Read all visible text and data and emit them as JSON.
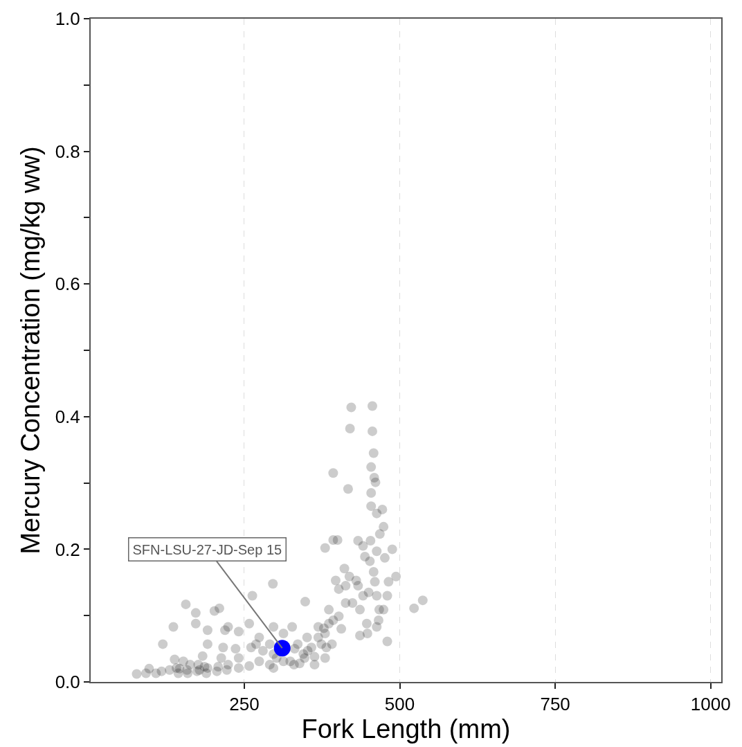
{
  "chart_data": {
    "type": "scatter",
    "xlabel": "Fork Length (mm)",
    "ylabel": "Mercury Concentration (mg/kg ww)",
    "xlim": [
      3,
      1017
    ],
    "ylim": [
      0,
      1.0
    ],
    "xticks": [
      250,
      500,
      750,
      1000
    ],
    "yticks": [
      {
        "value": 0,
        "label": "0.0"
      },
      {
        "value": 0.1,
        "label": null
      },
      {
        "value": 0.2,
        "label": "0.2"
      },
      {
        "value": 0.3,
        "label": null
      },
      {
        "value": 0.4,
        "label": "0.4"
      },
      {
        "value": 0.5,
        "label": null
      },
      {
        "value": 0.6,
        "label": "0.6"
      },
      {
        "value": 0.7,
        "label": null
      },
      {
        "value": 0.8,
        "label": "0.8"
      },
      {
        "value": 0.9,
        "label": null
      },
      {
        "value": 1.0,
        "label": "1.0"
      }
    ],
    "grid": "x",
    "marker": "circle",
    "series": [
      {
        "color": "#000000",
        "x": [
          77,
          119,
          117,
          146,
          159,
          144,
          186,
          183,
          202,
          210,
          216,
          219,
          241,
          263,
          296,
          327,
          348,
          393,
          417,
          420,
          422,
          456,
          456,
          458,
          454,
          459,
          454,
          461,
          454,
          463,
          472,
          474,
          468,
          453,
          393,
          400,
          380,
          433,
          444,
          452,
          476,
          488,
          397,
          411,
          430,
          450,
          480,
          494,
          482,
          523,
          537,
          480,
          463,
          474,
          466,
          448,
          436,
          406,
          378,
          351,
          331,
          297,
          280,
          261,
          241,
          224,
          208,
          191,
          178,
          163,
          152,
          138,
          136,
          156,
          172,
          172,
          191,
          224,
          258,
          274,
          297,
          313,
          324,
          339,
          347,
          358,
          369,
          380,
          386,
          393,
          402,
          413,
          424,
          436,
          441,
          447,
          391,
          382,
          380,
          363,
          345,
          330,
          313,
          302,
          291,
          274,
          258,
          241,
          222,
          206,
          189,
          174,
          158,
          141,
          130,
          108,
          97,
          92,
          191,
          236,
          291,
          336,
          352,
          369,
          386,
          402,
          413,
          419,
          433,
          458,
          463,
          441,
          460,
          467,
          463,
          363,
          374,
          297,
          269,
          213,
          176
        ],
        "values": [
          0.012,
          0.057,
          0.016,
          0.02,
          0.013,
          0.013,
          0.023,
          0.039,
          0.107,
          0.111,
          0.052,
          0.078,
          0.076,
          0.13,
          0.148,
          0.083,
          0.121,
          0.315,
          0.291,
          0.382,
          0.414,
          0.416,
          0.378,
          0.345,
          0.324,
          0.308,
          0.285,
          0.301,
          0.265,
          0.254,
          0.26,
          0.234,
          0.223,
          0.213,
          0.214,
          0.214,
          0.202,
          0.213,
          0.189,
          0.182,
          0.187,
          0.2,
          0.153,
          0.171,
          0.153,
          0.135,
          0.13,
          0.159,
          0.151,
          0.111,
          0.123,
          0.061,
          0.083,
          0.109,
          0.093,
          0.073,
          0.07,
          0.08,
          0.081,
          0.067,
          0.05,
          0.042,
          0.047,
          0.052,
          0.036,
          0.026,
          0.023,
          0.021,
          0.018,
          0.026,
          0.031,
          0.034,
          0.083,
          0.117,
          0.104,
          0.088,
          0.057,
          0.083,
          0.088,
          0.067,
          0.083,
          0.073,
          0.031,
          0.028,
          0.036,
          0.052,
          0.067,
          0.073,
          0.088,
          0.093,
          0.099,
          0.119,
          0.119,
          0.109,
          0.13,
          0.088,
          0.057,
          0.052,
          0.036,
          0.038,
          0.042,
          0.026,
          0.031,
          0.036,
          0.026,
          0.031,
          0.024,
          0.021,
          0.018,
          0.016,
          0.013,
          0.016,
          0.018,
          0.021,
          0.018,
          0.013,
          0.02,
          0.013,
          0.078,
          0.05,
          0.057,
          0.057,
          0.047,
          0.083,
          0.109,
          0.14,
          0.145,
          0.159,
          0.145,
          0.166,
          0.197,
          0.205,
          0.151,
          0.109,
          0.13,
          0.026,
          0.057,
          0.021,
          0.057,
          0.036,
          0.026
        ]
      },
      {
        "color": "#0000ff",
        "x": [
          311
        ],
        "values": [
          0.051
        ]
      }
    ],
    "annotations": [
      {
        "text": "SFN-LSU-27-JD-Sep 15",
        "x": 311,
        "y": 0.051
      }
    ]
  }
}
